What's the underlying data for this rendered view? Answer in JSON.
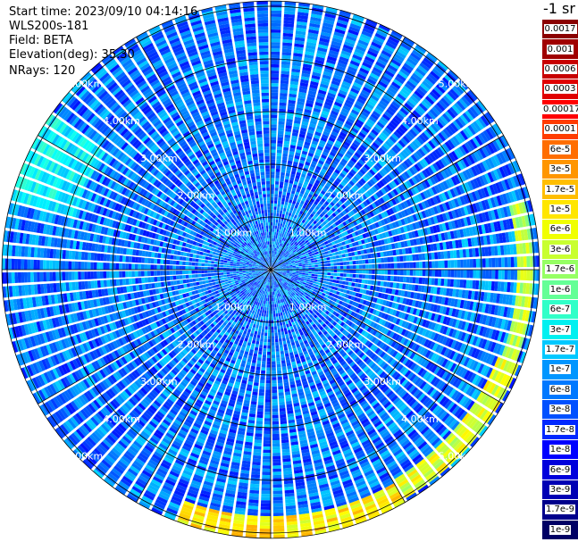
{
  "header": {
    "start_time": "Start time: 2023/09/10 04:14:16",
    "instrument": "WLS200s-181",
    "field": "Field: BETA",
    "elevation": "Elevation(deg): 35.30",
    "nrays": "NRays: 120"
  },
  "colorbar": {
    "title": "-1 sr",
    "labels": [
      "0.0017",
      "0.001",
      "0.0006",
      "0.0003",
      "0.00017",
      "0.0001",
      "6e-5",
      "3e-5",
      "1.7e-5",
      "1e-5",
      "6e-6",
      "3e-6",
      "1.7e-6",
      "1e-6",
      "6e-7",
      "3e-7",
      "1.7e-7",
      "1e-7",
      "6e-8",
      "3e-8",
      "1.7e-8",
      "1e-8",
      "6e-9",
      "3e-9",
      "1.7e-9",
      "1e-9"
    ],
    "colors": [
      "#8b0000",
      "#a00000",
      "#c80000",
      "#e00000",
      "#ff0000",
      "#ff3c00",
      "#ff6e00",
      "#ff9600",
      "#ffbe00",
      "#ffe600",
      "#f0ff00",
      "#c8ff30",
      "#96ff64",
      "#64ff96",
      "#30ffc8",
      "#00f0f0",
      "#00c8ff",
      "#0096ff",
      "#0078ff",
      "#0050ff",
      "#0028ff",
      "#0000ff",
      "#0000dc",
      "#0000b4",
      "#00008c",
      "#000064"
    ]
  },
  "chart_data": {
    "type": "heatmap",
    "projection": "polar PPI",
    "n_rays": 120,
    "range_unit": "km",
    "range_max_km": 5.1,
    "range_rings_km": [
      1.0,
      2.0,
      3.0,
      4.0,
      5.0
    ],
    "ring_labels": [
      "1.00km",
      "2.00km",
      "3.00km",
      "4.00km",
      "5.00km"
    ],
    "spokes_deg": [
      0,
      30,
      60,
      90,
      120,
      150,
      180,
      210,
      240,
      270,
      300,
      330
    ],
    "field": "BETA",
    "elevation_deg": 35.3,
    "value_scale": "log",
    "value_range": [
      1e-09,
      0.0017
    ],
    "background_beta": 3e-08,
    "enhanced_regions": [
      {
        "azimuth_deg_from": 75,
        "azimuth_deg_to": 110,
        "range_km_from": 4.65,
        "range_km_to": 4.95,
        "beta": 3e-06
      },
      {
        "azimuth_deg_from": 110,
        "azimuth_deg_to": 150,
        "range_km_from": 4.6,
        "range_km_to": 5.0,
        "beta": 5e-06
      },
      {
        "azimuth_deg_from": 150,
        "azimuth_deg_to": 200,
        "range_km_from": 4.65,
        "range_km_to": 5.05,
        "beta": 1e-05
      },
      {
        "azimuth_deg_from": 285,
        "azimuth_deg_to": 305,
        "range_km_from": 3.8,
        "range_km_to": 5.1,
        "beta": 2e-07
      }
    ]
  }
}
